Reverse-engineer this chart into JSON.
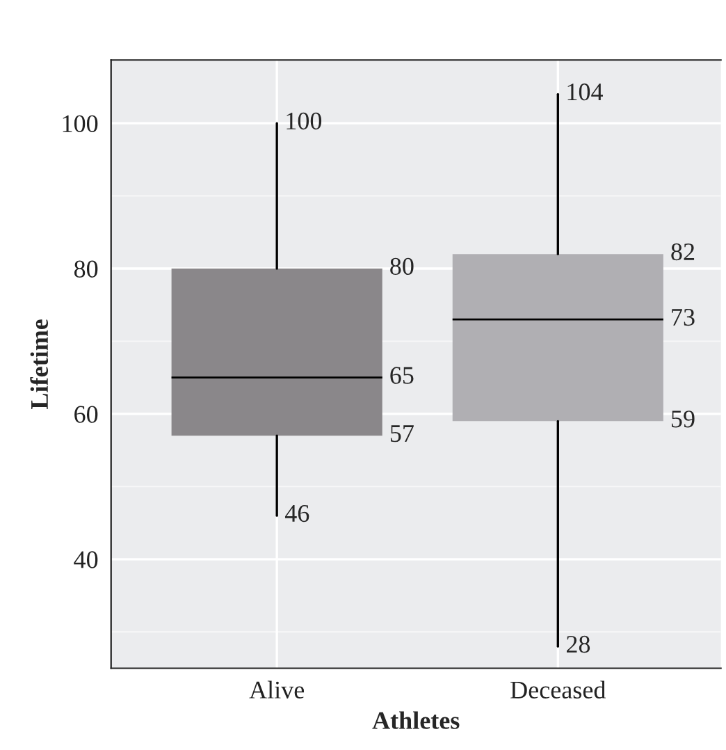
{
  "chart_data": {
    "type": "box",
    "xlabel": "Athletes",
    "ylabel": "Lifetime",
    "categories": [
      "Alive",
      "Deceased"
    ],
    "colors": [
      "#8a878a",
      "#b0afb3"
    ],
    "boxes": [
      {
        "low": 46,
        "q1": 57,
        "median": 65,
        "q3": 80,
        "high": 100
      },
      {
        "low": 28,
        "q1": 59,
        "median": 73,
        "q3": 82,
        "high": 104
      }
    ],
    "annotations": [
      {
        "text": "100",
        "x": "Alive",
        "y": 100
      },
      "80",
      "65",
      "57",
      {
        "text": "46",
        "x": "Alive",
        "y": 46
      },
      {
        "text": "104",
        "x": "Deceased",
        "y": 104
      },
      "82",
      "73",
      "59",
      {
        "text": "28",
        "x": "Deceased",
        "y": 28
      }
    ],
    "ylim": [
      25,
      108.7
    ],
    "yticks": [
      40,
      60,
      80,
      100
    ],
    "grid": true
  }
}
